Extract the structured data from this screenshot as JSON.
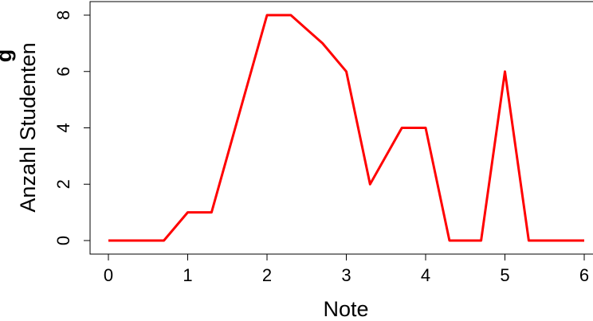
{
  "chart_data": {
    "type": "line",
    "xlabel": "Note",
    "ylabel": "Anzahl Studenten",
    "cut_off_label": "g",
    "xlim": [
      0,
      6
    ],
    "ylim": [
      0,
      8
    ],
    "x_ticks": [
      0,
      1,
      2,
      3,
      4,
      5,
      6
    ],
    "y_ticks": [
      0,
      2,
      4,
      6,
      8
    ],
    "grid": false,
    "legend": "none",
    "line_color": "#ff0000",
    "series": [
      {
        "x": [
          0,
          0.7,
          1,
          1.3,
          1.7,
          2,
          2.3,
          2.7,
          3,
          3.3,
          3.7,
          4,
          4.3,
          4.7,
          5,
          5.3,
          6
        ],
        "y": [
          0,
          0,
          1,
          1,
          5,
          8,
          8,
          7,
          6,
          2,
          4,
          4,
          0,
          0,
          6,
          0,
          0
        ]
      }
    ]
  }
}
